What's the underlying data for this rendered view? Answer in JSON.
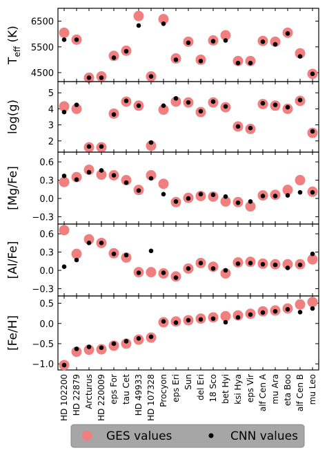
{
  "colors": {
    "ges": "#f08080",
    "cnn": "#000000",
    "legend_bg": "#a6a6a6"
  },
  "legend": {
    "ges_label": "GES values",
    "cnn_label": "CNN values"
  },
  "chart_data": [
    {
      "type": "scatter",
      "ylabel_main": "T",
      "ylabel_sub": "eff",
      "ylabel_tail": " (K)",
      "ylim": [
        4150,
        7000
      ],
      "yticks": [
        4500,
        5500,
        6500
      ],
      "ytick_labels": [
        "4500",
        "5500",
        "6500"
      ],
      "categories": [
        "HD 102200",
        "HD 22879",
        "Arcturus",
        "HD 220009",
        "eps For",
        "tau Cet",
        "HD 49933",
        "HD 107328",
        "Procyon",
        "eps Eri",
        "Sun",
        "del Eri",
        "18 Sco",
        "bet Hyi",
        "ksi Hya",
        "eps Vir",
        "alf Cen A",
        "mu Ara",
        "eta Boo",
        "alf Cen B",
        "mu Leo"
      ],
      "series": [
        {
          "name": "GES values",
          "values": [
            6050,
            5780,
            4300,
            4350,
            5150,
            5350,
            6700,
            4350,
            6580,
            5050,
            5700,
            5000,
            5750,
            5950,
            4950,
            4950,
            5730,
            5700,
            6050,
            5250,
            4450
          ]
        },
        {
          "name": "CNN values",
          "values": [
            5780,
            5780,
            4300,
            4300,
            5080,
            5330,
            6330,
            4350,
            6400,
            5000,
            5660,
            4950,
            5720,
            5750,
            4870,
            4870,
            5700,
            5600,
            6020,
            5130,
            4450
          ]
        }
      ]
    },
    {
      "type": "scatter",
      "ylabel_main": "log(g)",
      "ylim": [
        1.3,
        5.7
      ],
      "yticks": [
        2,
        3,
        4,
        5
      ],
      "ytick_labels": [
        "2",
        "3",
        "4",
        "5"
      ],
      "series": [
        {
          "name": "GES values",
          "values": [
            4.15,
            4.0,
            1.6,
            1.6,
            3.7,
            4.45,
            4.2,
            1.7,
            3.95,
            4.45,
            4.4,
            3.8,
            4.4,
            4.1,
            2.9,
            2.75,
            4.3,
            4.2,
            4.0,
            4.5,
            2.5
          ]
        },
        {
          "name": "CNN values",
          "values": [
            3.8,
            4.25,
            1.65,
            1.65,
            3.65,
            4.5,
            4.2,
            1.9,
            4.2,
            4.65,
            4.4,
            3.85,
            4.45,
            4.15,
            2.9,
            2.8,
            4.35,
            4.25,
            4.1,
            4.55,
            2.6
          ]
        }
      ]
    },
    {
      "type": "scatter",
      "ylabel_main": "[Mg/Fe]",
      "ylim": [
        -0.42,
        0.76
      ],
      "yticks": [
        -0.3,
        0.0,
        0.3,
        0.6
      ],
      "ytick_labels": [
        "−0.3",
        "0.0",
        "0.3",
        "0.6"
      ],
      "series": [
        {
          "name": "GES values",
          "values": [
            0.27,
            0.35,
            0.47,
            0.39,
            0.38,
            0.3,
            0.14,
            0.38,
            0.24,
            -0.06,
            0.01,
            0.04,
            0.03,
            -0.05,
            -0.06,
            -0.13,
            0.05,
            0.06,
            0.14,
            0.3,
            0.11
          ]
        },
        {
          "name": "CNN values",
          "values": [
            0.37,
            0.31,
            0.43,
            0.46,
            0.38,
            0.26,
            0.13,
            0.33,
            0.07,
            -0.05,
            0.0,
            0.07,
            0.06,
            0.03,
            -0.07,
            -0.05,
            0.04,
            0.04,
            0.05,
            0.1,
            0.1
          ]
        }
      ]
    },
    {
      "type": "scatter",
      "ylabel_main": "[Al/Fe]",
      "ylim": [
        -0.42,
        0.76
      ],
      "yticks": [
        -0.3,
        0.0,
        0.3,
        0.6
      ],
      "ytick_labels": [
        "−0.3",
        "0.0",
        "0.3",
        "0.6"
      ],
      "series": [
        {
          "name": "GES values",
          "values": [
            0.66,
            0.27,
            0.51,
            0.45,
            0.28,
            0.21,
            -0.03,
            -0.03,
            -0.05,
            -0.1,
            0.03,
            0.12,
            0.06,
            -0.05,
            0.13,
            0.14,
            0.11,
            0.1,
            0.1,
            0.1,
            0.18
          ]
        },
        {
          "name": "CNN values",
          "values": [
            0.06,
            0.17,
            0.45,
            0.45,
            0.27,
            0.25,
            -0.04,
            0.32,
            -0.04,
            -0.12,
            0.03,
            0.12,
            0.03,
            0.0,
            0.11,
            0.12,
            0.1,
            0.09,
            0.04,
            0.09,
            0.27
          ]
        }
      ]
    },
    {
      "type": "scatter",
      "ylabel_main": "[Fe/H]",
      "ylim": [
        -1.15,
        0.68
      ],
      "yticks": [
        -1.0,
        -0.5,
        0.0,
        0.5
      ],
      "ytick_labels": [
        "−1.0",
        "−0.5",
        "0.0",
        "0.5"
      ],
      "series": [
        {
          "name": "GES values",
          "values": [
            -1.03,
            -0.7,
            -0.65,
            -0.64,
            -0.55,
            -0.5,
            -0.4,
            -0.35,
            0.03,
            0.05,
            0.08,
            0.12,
            0.15,
            0.18,
            0.2,
            0.24,
            0.3,
            0.32,
            0.37,
            0.47,
            0.53
          ]
        },
        {
          "name": "CNN values",
          "values": [
            -1.03,
            -0.63,
            -0.58,
            -0.6,
            -0.5,
            -0.44,
            -0.37,
            -0.33,
            0.05,
            0.02,
            0.08,
            0.1,
            0.12,
            0.03,
            0.15,
            0.22,
            0.27,
            0.3,
            0.35,
            0.28,
            0.37
          ]
        }
      ]
    }
  ]
}
